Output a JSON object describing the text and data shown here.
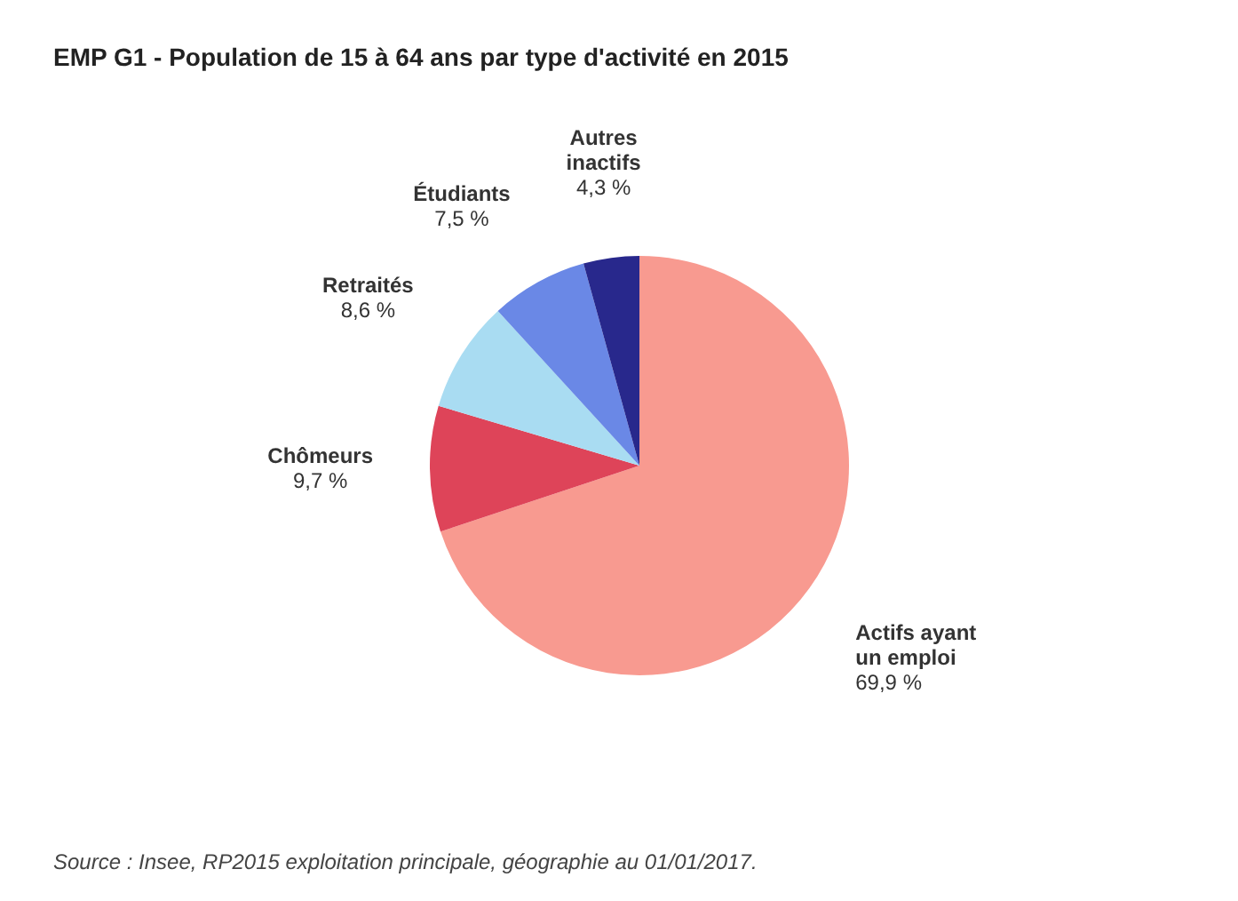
{
  "chart_data": {
    "type": "pie",
    "title": "EMP G1 - Population de 15 à 64 ans par type d'activité en 2015",
    "categories": [
      "Actifs ayant un emploi",
      "Chômeurs",
      "Retraités",
      "Étudiants",
      "Autres inactifs"
    ],
    "values": [
      69.9,
      9.7,
      8.6,
      7.5,
      4.3
    ],
    "value_labels": [
      "69,9 %",
      "9,7 %",
      "8,6 %",
      "7,5 %",
      "4,3 %"
    ],
    "colors": [
      "#f89a90",
      "#de4459",
      "#a9dcf2",
      "#6a88e6",
      "#28288c"
    ],
    "legend": false,
    "annotations": [
      "Source : Insee, RP2015 exploitation principale, géographie au 01/01/2017."
    ]
  }
}
